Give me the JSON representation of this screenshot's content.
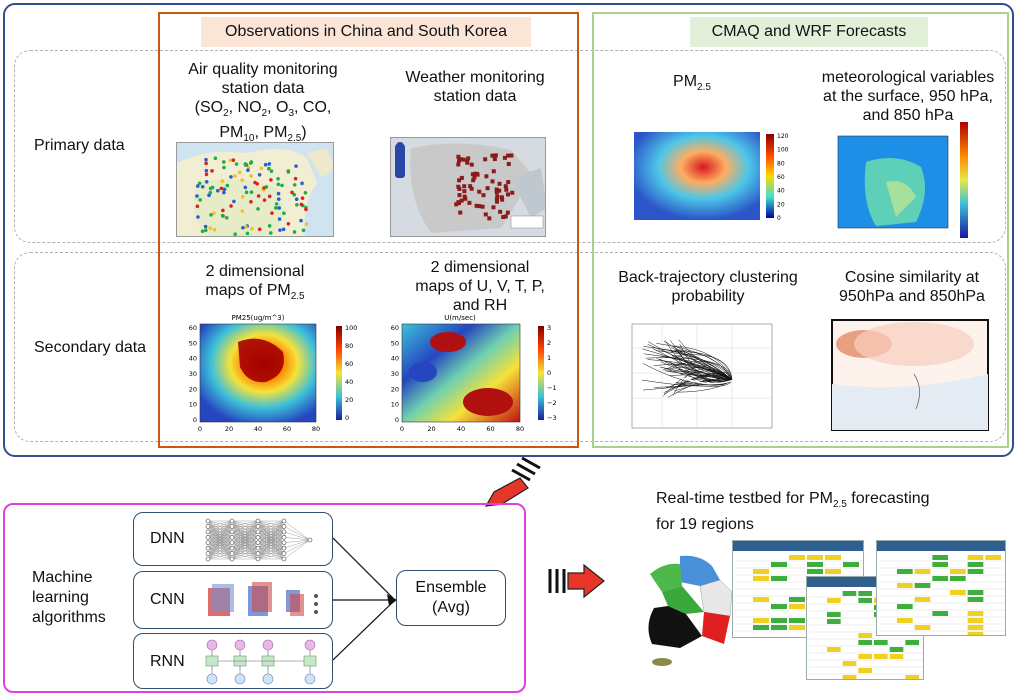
{
  "panels": {
    "observations_title": "Observations in China and South Korea",
    "forecasts_title": "CMAQ and WRF Forecasts"
  },
  "rows": {
    "primary_label": "Primary data",
    "secondary_label": "Secondary data"
  },
  "primary": {
    "air_quality_line1": "Air quality monitoring",
    "air_quality_line2": "station data",
    "air_quality_line3_parts": [
      "(SO",
      "2",
      ", NO",
      "2",
      ", O",
      "3",
      ", CO,"
    ],
    "air_quality_line4_parts": [
      "PM",
      "10",
      ", PM",
      "2.5",
      ")"
    ],
    "weather_line1": "Weather monitoring",
    "weather_line2": "station data",
    "pm_label": "PM",
    "pm_sub": "2.5",
    "met_line1": "meteorological variables",
    "met_line2": "at the surface, 950 hPa,",
    "met_line3": "and 850 hPa"
  },
  "secondary": {
    "pm_map_line1": "2 dimensional",
    "pm_map_line2": "maps of PM",
    "pm_map_sub": "2.5",
    "uvtp_line1": "2 dimensional",
    "uvtp_line2": "maps of U, V, T, P,",
    "uvtp_line3": "and RH",
    "traj_line1": "Back-trajectory clustering",
    "traj_line2": "probability",
    "cos_line1": "Cosine similarity at",
    "cos_line2": "950hPa and 850hPa"
  },
  "plots": {
    "pm25": {
      "title": "PM25(ug/m^3)",
      "x_ticks": [
        "0",
        "20",
        "40",
        "60",
        "80"
      ],
      "y_ticks": [
        "60",
        "50",
        "40",
        "30",
        "20",
        "10",
        "0"
      ],
      "cbar_ticks": [
        "100",
        "80",
        "60",
        "40",
        "20",
        "0"
      ]
    },
    "u": {
      "title": "U(m/sec)",
      "x_ticks": [
        "0",
        "20",
        "40",
        "60",
        "80"
      ],
      "y_ticks": [
        "60",
        "50",
        "40",
        "30",
        "20",
        "10",
        "0"
      ],
      "cbar_ticks": [
        "3",
        "2",
        "1",
        "0",
        "−1",
        "−2",
        "−3"
      ]
    },
    "forecast_cbar_ticks": [
      "120",
      "100",
      "80",
      "60",
      "40",
      "20",
      "0"
    ]
  },
  "ml": {
    "title_line1": "Machine",
    "title_line2": "learning",
    "title_line3": "algorithms",
    "dnn": "DNN",
    "cnn": "CNN",
    "rnn": "RNN",
    "ensemble_line1": "Ensemble",
    "ensemble_line2": "(Avg)"
  },
  "testbed": {
    "title_prefix": "Real-time testbed for PM",
    "title_sub": "2.5",
    "title_suffix": " forecasting",
    "title_line2": "for 19 regions"
  },
  "colors": {
    "outer_border": "#2f4f8f",
    "observations_border": "#c55a11",
    "observations_fill": "#fbe5d6",
    "forecasts_border": "#a9d18e",
    "forecasts_fill": "#e2f0d9",
    "ml_border": "#e040e0",
    "arrow_red": "#e8352a"
  }
}
